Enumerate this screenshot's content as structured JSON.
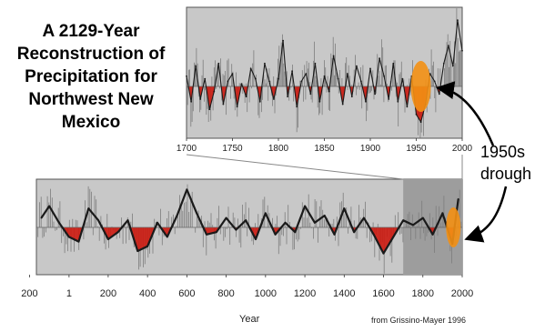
{
  "title_lines": [
    "A 2129-Year",
    "Reconstruction of",
    "Precipitation for",
    "Northwest New",
    "Mexico"
  ],
  "callout_lines": [
    "1950s",
    "drough"
  ],
  "xaxis_label": "Year",
  "source": "from Grissino-Mayer 1996",
  "colors": {
    "panel": "#c8c8c8",
    "highlight_region": "#9d9d9d",
    "series_line": "#1a1a1a",
    "raw_line": "#7d7d7d",
    "drought_fill": "#cc1a10",
    "drought_marker": "#f39014",
    "arrow": "#000000"
  },
  "chart_data": [
    {
      "type": "line",
      "panel": "inset",
      "title": "",
      "xlabel": "",
      "ylabel": "",
      "xlim": [
        1700,
        2000
      ],
      "ticks": [
        "1700",
        "1750",
        "1800",
        "1850",
        "1900",
        "1950",
        "2000"
      ],
      "tick_values": [
        1700,
        1750,
        1800,
        1850,
        1900,
        1950,
        2000
      ],
      "grid": false,
      "series": [
        {
          "x": [
            1700,
            1705,
            1710,
            1715,
            1720,
            1725,
            1730,
            1735,
            1740,
            1745,
            1750,
            1755,
            1760,
            1765,
            1770,
            1775,
            1780,
            1785,
            1790,
            1795,
            1800,
            1805,
            1810,
            1815,
            1820,
            1825,
            1830,
            1835,
            1840,
            1845,
            1850,
            1855,
            1860,
            1865,
            1870,
            1875,
            1880,
            1885,
            1890,
            1895,
            1900,
            1905,
            1910,
            1915,
            1920,
            1925,
            1930,
            1935,
            1940,
            1945,
            1950,
            1955,
            1960,
            1965,
            1970,
            1975,
            1980,
            1985,
            1990,
            1995,
            2000
          ],
          "values": [
            0.4,
            -0.6,
            0.8,
            -0.5,
            0.3,
            -0.9,
            -0.2,
            0.9,
            -0.7,
            0.2,
            0.5,
            -0.8,
            0.1,
            -0.4,
            0.7,
            0.3,
            -0.6,
            0.9,
            0.2,
            -0.5,
            0.3,
            1.8,
            -0.4,
            0.6,
            -0.8,
            0.2,
            0.5,
            -0.3,
            0.9,
            -0.6,
            0.4,
            -0.2,
            1.2,
            0.3,
            -0.7,
            0.5,
            -0.4,
            0.8,
            0.2,
            -0.6,
            0.7,
            -0.3,
            1.1,
            0.4,
            -0.5,
            0.9,
            -0.6,
            0.3,
            -0.8,
            0.4,
            -1.1,
            -1.4,
            -0.7,
            0.5,
            0.2,
            -0.3,
            0.9,
            1.6,
            0.8,
            2.6,
            1.4
          ]
        }
      ],
      "drought_periods": [
        [
          1730,
          1745
        ],
        [
          1760,
          1772
        ],
        [
          1815,
          1825
        ],
        [
          1895,
          1905
        ],
        [
          1945,
          1960
        ]
      ],
      "highlight": {
        "x": 1955,
        "label_lines": [
          "1950s",
          "drough"
        ]
      }
    },
    {
      "type": "line",
      "panel": "main",
      "title": "",
      "xlabel": "Year",
      "ylabel": "",
      "xlim": [
        -165,
        2000
      ],
      "ticks": [
        "200",
        "1",
        "200",
        "400",
        "600",
        "800",
        "1000",
        "1200",
        "1400",
        "1600",
        "1800",
        "2000"
      ],
      "tick_values": [
        -200,
        1,
        200,
        400,
        600,
        800,
        1000,
        1200,
        1400,
        1600,
        1800,
        2000
      ],
      "grid": false,
      "highlight_region": [
        1700,
        2000
      ],
      "series": [
        {
          "name": "",
          "x": [
            -140,
            -100,
            -50,
            0,
            50,
            100,
            150,
            200,
            250,
            300,
            350,
            400,
            450,
            500,
            550,
            600,
            650,
            700,
            750,
            800,
            850,
            900,
            950,
            1000,
            1050,
            1100,
            1150,
            1200,
            1250,
            1300,
            1350,
            1400,
            1450,
            1500,
            1550,
            1600,
            1650,
            1700,
            1750,
            1800,
            1850,
            1900,
            1950,
            1980
          ],
          "values": [
            0.4,
            0.9,
            0.2,
            -0.4,
            -0.6,
            0.8,
            0.3,
            -0.5,
            -0.2,
            0.3,
            -1.0,
            -0.8,
            0.2,
            -0.4,
            0.5,
            1.6,
            0.6,
            -0.3,
            -0.2,
            0.4,
            -0.1,
            0.3,
            -0.5,
            0.6,
            -0.3,
            0.2,
            -0.2,
            0.9,
            0.2,
            0.5,
            -0.3,
            0.8,
            -0.2,
            0.4,
            -0.3,
            -1.1,
            -0.4,
            0.3,
            0.1,
            0.4,
            -0.3,
            0.6,
            -0.7,
            1.2
          ]
        }
      ],
      "highlight": {
        "x": 1955
      }
    }
  ]
}
